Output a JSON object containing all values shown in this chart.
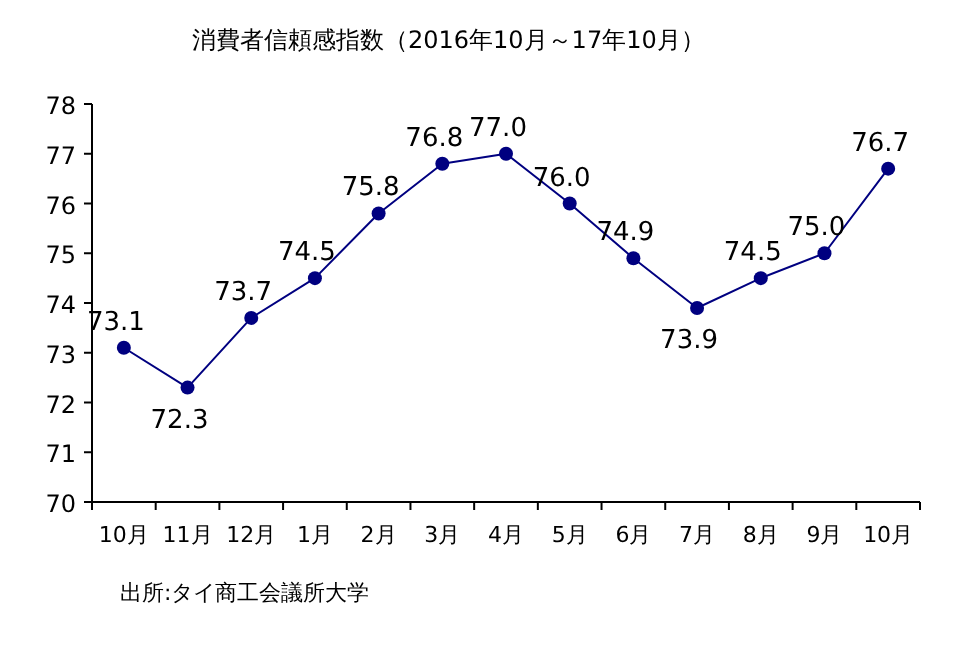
{
  "chart_data": {
    "type": "line",
    "title": "消費者信頼感指数（2016年10月～17年10月）",
    "categories": [
      "10月",
      "11月",
      "12月",
      "1月",
      "2月",
      "3月",
      "4月",
      "5月",
      "6月",
      "7月",
      "8月",
      "9月",
      "10月"
    ],
    "values": [
      73.1,
      72.3,
      73.7,
      74.5,
      75.8,
      76.8,
      77.0,
      76.0,
      74.9,
      73.9,
      74.5,
      75.0,
      76.7
    ],
    "value_labels": [
      "73.1",
      "72.3",
      "73.7",
      "74.5",
      "75.8",
      "76.8",
      "77.0",
      "76.0",
      "74.9",
      "73.9",
      "74.5",
      "75.0",
      "76.7"
    ],
    "color": "#000080",
    "marker": "circle",
    "ylim": [
      70,
      78
    ],
    "yticks": [
      70,
      71,
      72,
      73,
      74,
      75,
      76,
      77,
      78
    ],
    "annotations": [
      "出所:タイ商工会議所大学"
    ]
  }
}
